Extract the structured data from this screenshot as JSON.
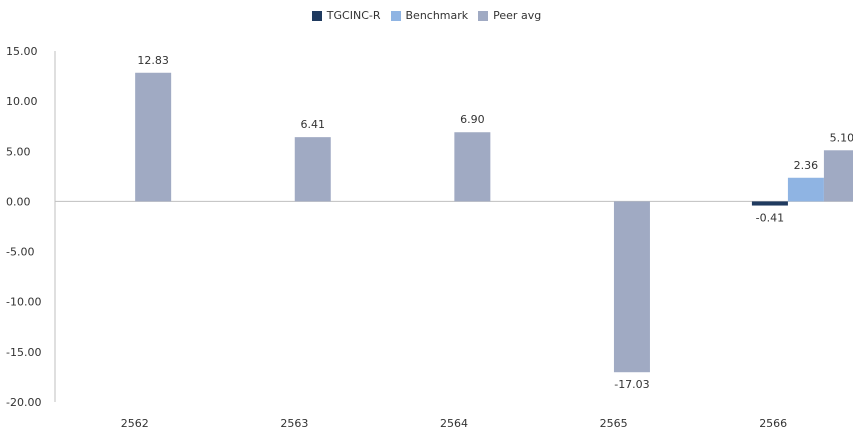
{
  "chart_data": {
    "type": "bar",
    "categories": [
      "2562",
      "2563",
      "2564",
      "2565",
      "2566"
    ],
    "series": [
      {
        "name": "TGCINC-R",
        "color": "#1f3a5f",
        "values": [
          null,
          null,
          null,
          null,
          -0.41
        ],
        "labels": [
          "",
          "",
          "",
          "",
          "-0.41"
        ]
      },
      {
        "name": "Benchmark",
        "color": "#8fb4e3",
        "values": [
          null,
          null,
          null,
          null,
          2.36
        ],
        "labels": [
          "",
          "",
          "",
          "",
          "2.36"
        ]
      },
      {
        "name": "Peer avg",
        "color": "#a0aac3",
        "values": [
          12.83,
          6.41,
          6.9,
          -17.03,
          5.1
        ],
        "labels": [
          "12.83",
          "6.41",
          "6.90",
          "-17.03",
          "5.10"
        ]
      }
    ],
    "ylim": [
      -20,
      15
    ],
    "yticks": [
      "15.00",
      "10.00",
      "5.00",
      "0.00",
      "-5.00",
      "-10.00",
      "-15.00",
      "-20.00"
    ],
    "legend": "top-center",
    "grid": false
  }
}
